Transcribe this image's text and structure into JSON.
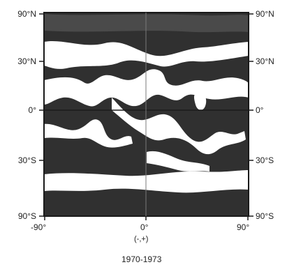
{
  "map": {
    "lat_labels": [
      "90°N",
      "30°N",
      "0°",
      "30°S",
      "90°S"
    ],
    "lon_labels": [
      "-90°",
      "0°",
      "90°"
    ],
    "caption_symbol": "(-,+)",
    "period": "1970-1973",
    "colors": {
      "dark": "#303030",
      "light": "#ffffff",
      "frame": "#1a1a1a"
    }
  }
}
